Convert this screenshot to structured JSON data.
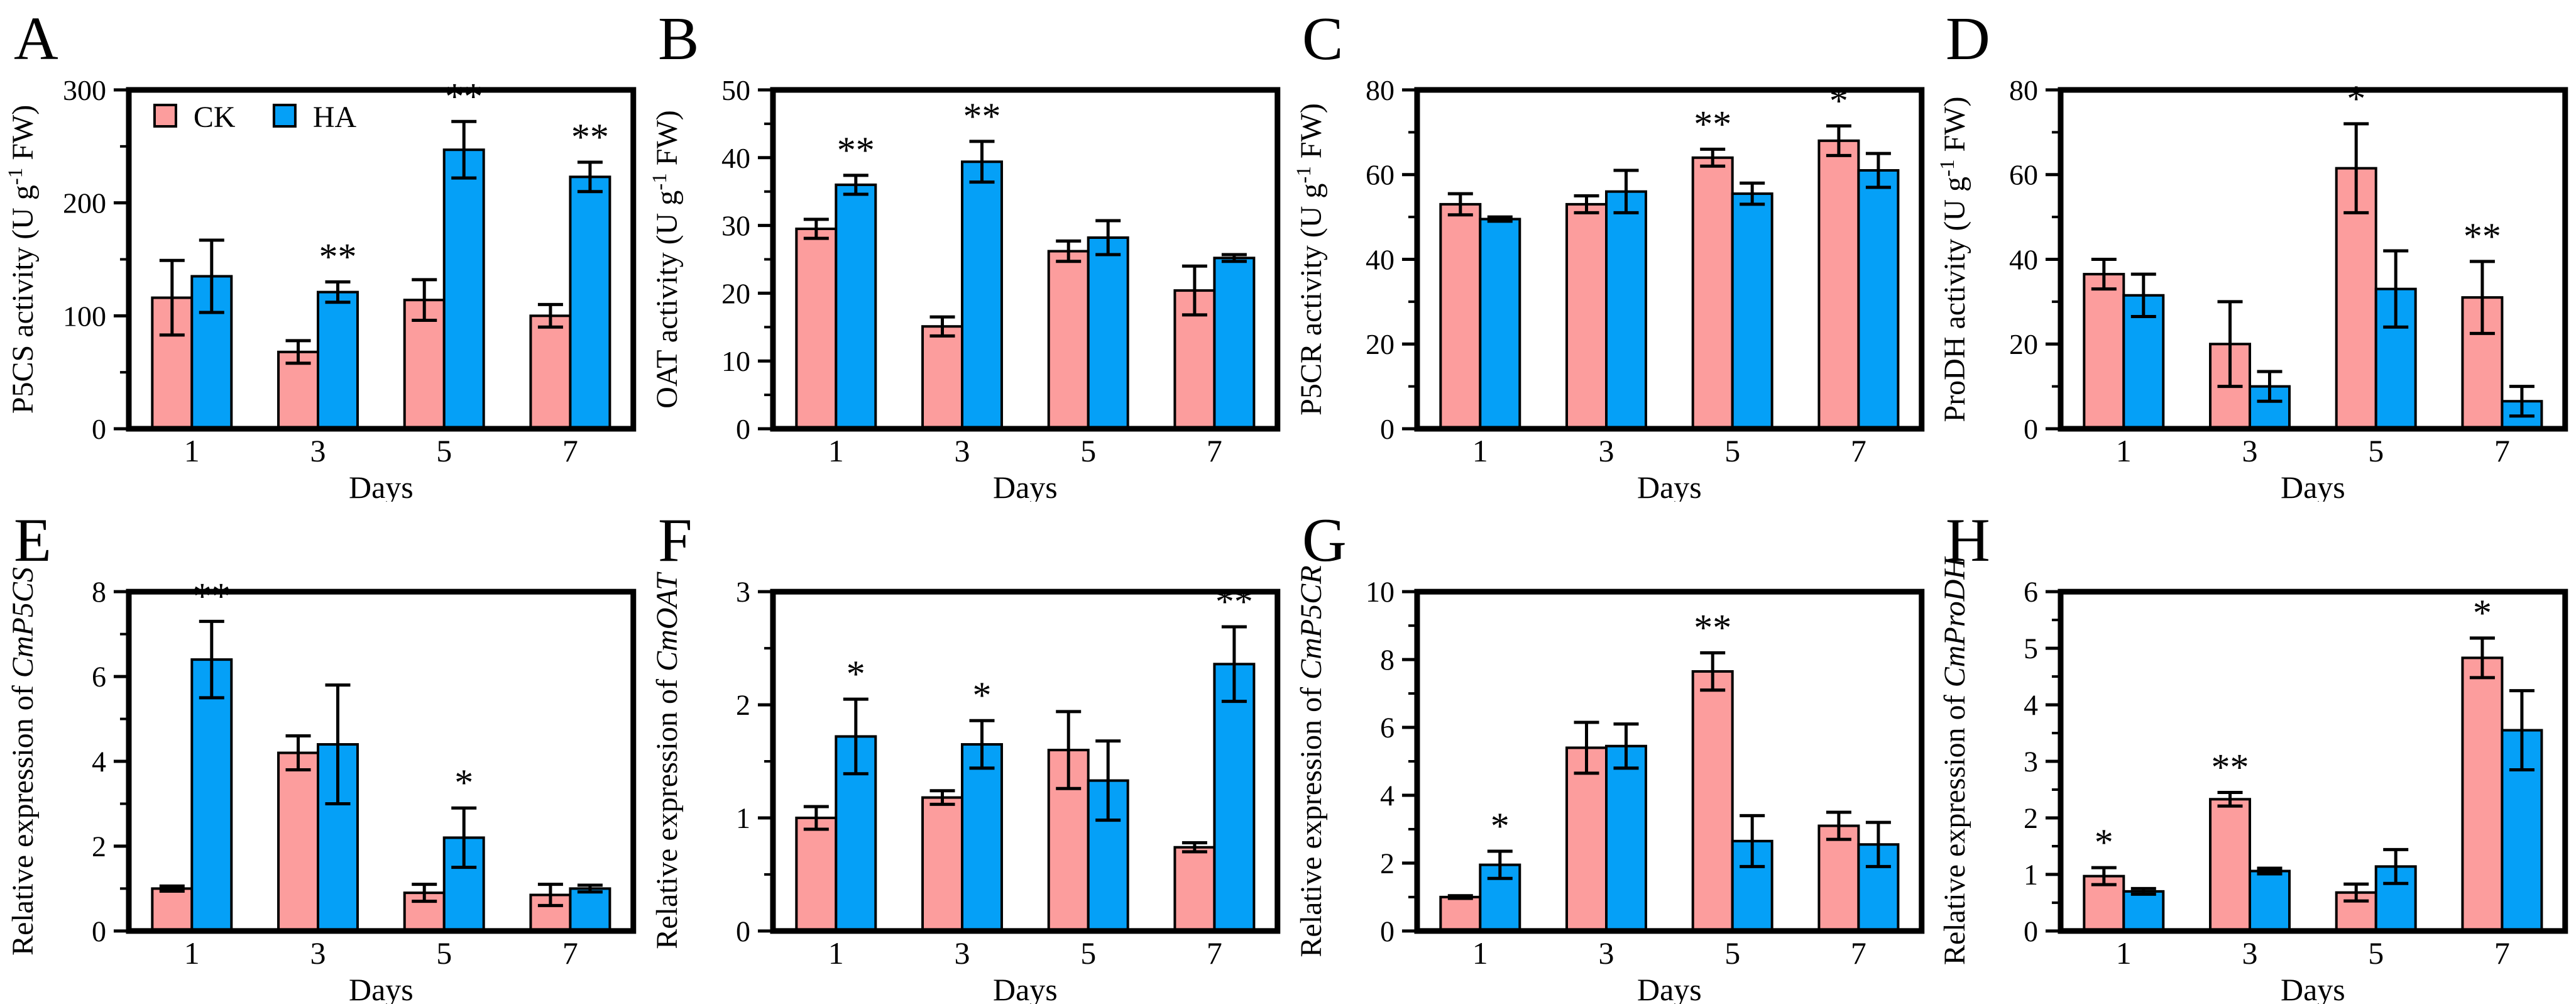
{
  "figure": {
    "layout": {
      "rows": 2,
      "cols": 4
    },
    "colors": {
      "ck_fill": "#FC9D9D",
      "ha_fill": "#05A0F7",
      "outline": "#000000",
      "background": "#FFFFFF"
    },
    "legend": {
      "panel": "A",
      "items": [
        {
          "key": "CK",
          "label": "CK"
        },
        {
          "key": "HA",
          "label": "HA"
        }
      ]
    },
    "xlabel": "Days",
    "categories": [
      "1",
      "3",
      "5",
      "7"
    ]
  },
  "chart_data": [
    {
      "panel": "A",
      "type": "bar",
      "ylabel": "P5CS activity (U g-1 FW)",
      "ylabel_segments": [
        {
          "t": "P5CS activity (U g"
        },
        {
          "t": "-1",
          "sup": true
        },
        {
          "t": " FW)"
        }
      ],
      "ylim": [
        0,
        300
      ],
      "yticks": [
        0,
        100,
        200,
        300
      ],
      "categories": [
        "1",
        "3",
        "5",
        "7"
      ],
      "xlabel": "Days",
      "series": [
        {
          "name": "CK",
          "values": [
            116,
            68,
            114,
            100
          ],
          "errors": [
            33,
            10,
            18,
            10
          ]
        },
        {
          "name": "HA",
          "values": [
            135,
            121,
            247,
            223
          ],
          "errors": [
            32,
            9,
            25,
            13
          ]
        }
      ],
      "significance": [
        {
          "category": "3",
          "series": "HA",
          "marker": "**"
        },
        {
          "category": "5",
          "series": "HA",
          "marker": "**"
        },
        {
          "category": "7",
          "series": "HA",
          "marker": "**"
        }
      ]
    },
    {
      "panel": "B",
      "type": "bar",
      "ylabel": "OAT activity (U g-1 FW)",
      "ylabel_segments": [
        {
          "t": "OAT activity (U g"
        },
        {
          "t": "-1",
          "sup": true
        },
        {
          "t": " FW)"
        }
      ],
      "ylim": [
        0,
        50
      ],
      "yticks": [
        0,
        10,
        20,
        30,
        40,
        50
      ],
      "categories": [
        "1",
        "3",
        "5",
        "7"
      ],
      "xlabel": "Days",
      "series": [
        {
          "name": "CK",
          "values": [
            29.5,
            15.1,
            26.2,
            20.4
          ],
          "errors": [
            1.4,
            1.4,
            1.5,
            3.6
          ]
        },
        {
          "name": "HA",
          "values": [
            36,
            39.4,
            28.2,
            25.2
          ],
          "errors": [
            1.4,
            3,
            2.5,
            0.5
          ]
        }
      ],
      "significance": [
        {
          "category": "1",
          "series": "HA",
          "marker": "**"
        },
        {
          "category": "3",
          "series": "HA",
          "marker": "**"
        }
      ]
    },
    {
      "panel": "C",
      "type": "bar",
      "ylabel": "P5CR activity (U g-1 FW)",
      "ylabel_segments": [
        {
          "t": "P5CR activity (U g"
        },
        {
          "t": "-1",
          "sup": true
        },
        {
          "t": " FW)"
        }
      ],
      "ylim": [
        0,
        80
      ],
      "yticks": [
        0,
        20,
        40,
        60,
        80
      ],
      "categories": [
        "1",
        "3",
        "5",
        "7"
      ],
      "xlabel": "Days",
      "series": [
        {
          "name": "CK",
          "values": [
            53,
            53,
            64,
            68
          ],
          "errors": [
            2.5,
            2,
            2,
            3.5
          ]
        },
        {
          "name": "HA",
          "values": [
            49.5,
            56,
            55.5,
            61
          ],
          "errors": [
            0.5,
            5,
            2.5,
            4
          ]
        }
      ],
      "significance": [
        {
          "category": "5",
          "series": "CK",
          "marker": "**"
        },
        {
          "category": "7",
          "series": "CK",
          "marker": "*"
        }
      ]
    },
    {
      "panel": "D",
      "type": "bar",
      "ylabel": "ProDH activity (U g-1 FW)",
      "ylabel_segments": [
        {
          "t": "ProDH activity (U g"
        },
        {
          "t": "-1",
          "sup": true
        },
        {
          "t": " FW)"
        }
      ],
      "ylim": [
        0,
        80
      ],
      "yticks": [
        0,
        20,
        40,
        60,
        80
      ],
      "categories": [
        "1",
        "3",
        "5",
        "7"
      ],
      "xlabel": "Days",
      "series": [
        {
          "name": "CK",
          "values": [
            36.5,
            20,
            61.5,
            31
          ],
          "errors": [
            3.5,
            10,
            10.5,
            8.5
          ]
        },
        {
          "name": "HA",
          "values": [
            31.5,
            10,
            33,
            6.5
          ],
          "errors": [
            5,
            3.5,
            9,
            3.5
          ]
        }
      ],
      "significance": [
        {
          "category": "5",
          "series": "CK",
          "marker": "*"
        },
        {
          "category": "7",
          "series": "CK",
          "marker": "**"
        }
      ]
    },
    {
      "panel": "E",
      "type": "bar",
      "ylabel": "Relative expression of CmP5CS",
      "ylabel_segments": [
        {
          "t": "Relative expression of "
        },
        {
          "t": "CmP5CS",
          "italic": true
        }
      ],
      "ylim": [
        0,
        8
      ],
      "yticks": [
        0,
        2,
        4,
        6,
        8
      ],
      "categories": [
        "1",
        "3",
        "5",
        "7"
      ],
      "xlabel": "Days",
      "series": [
        {
          "name": "CK",
          "values": [
            1.0,
            4.2,
            0.9,
            0.85
          ],
          "errors": [
            0.06,
            0.4,
            0.2,
            0.25
          ]
        },
        {
          "name": "HA",
          "values": [
            6.4,
            4.4,
            2.2,
            1.0
          ],
          "errors": [
            0.9,
            1.4,
            0.7,
            0.08
          ]
        }
      ],
      "significance": [
        {
          "category": "1",
          "series": "HA",
          "marker": "**"
        },
        {
          "category": "5",
          "series": "HA",
          "marker": "*"
        }
      ]
    },
    {
      "panel": "F",
      "type": "bar",
      "ylabel": "Relative expression of CmOAT",
      "ylabel_segments": [
        {
          "t": "Relative expression of "
        },
        {
          "t": "CmOAT",
          "italic": true
        }
      ],
      "ylim": [
        0,
        3
      ],
      "yticks": [
        0,
        1,
        2,
        3
      ],
      "categories": [
        "1",
        "3",
        "5",
        "7"
      ],
      "xlabel": "Days",
      "series": [
        {
          "name": "CK",
          "values": [
            1.0,
            1.18,
            1.6,
            0.74
          ],
          "errors": [
            0.1,
            0.06,
            0.34,
            0.04
          ]
        },
        {
          "name": "HA",
          "values": [
            1.72,
            1.65,
            1.33,
            2.36
          ],
          "errors": [
            0.33,
            0.21,
            0.35,
            0.33
          ]
        }
      ],
      "significance": [
        {
          "category": "1",
          "series": "HA",
          "marker": "*"
        },
        {
          "category": "3",
          "series": "HA",
          "marker": "*"
        },
        {
          "category": "7",
          "series": "HA",
          "marker": "**"
        }
      ]
    },
    {
      "panel": "G",
      "type": "bar",
      "ylabel": "Relative expression of CmP5CR",
      "ylabel_segments": [
        {
          "t": "Relative expression of "
        },
        {
          "t": "CmP5CR",
          "italic": true
        }
      ],
      "ylim": [
        0,
        10
      ],
      "yticks": [
        0,
        2,
        4,
        6,
        8,
        10
      ],
      "categories": [
        "1",
        "3",
        "5",
        "7"
      ],
      "xlabel": "Days",
      "series": [
        {
          "name": "CK",
          "values": [
            1.0,
            5.4,
            7.65,
            3.1
          ],
          "errors": [
            0.04,
            0.75,
            0.55,
            0.4
          ]
        },
        {
          "name": "HA",
          "values": [
            1.95,
            5.45,
            2.65,
            2.55
          ],
          "errors": [
            0.4,
            0.65,
            0.75,
            0.65
          ]
        }
      ],
      "significance": [
        {
          "category": "1",
          "series": "HA",
          "marker": "*"
        },
        {
          "category": "5",
          "series": "CK",
          "marker": "**"
        }
      ]
    },
    {
      "panel": "H",
      "type": "bar",
      "ylabel": "Relative expression of CmProDH",
      "ylabel_segments": [
        {
          "t": "Relative expression of "
        },
        {
          "t": "CmProDH",
          "italic": true
        }
      ],
      "ylim": [
        0,
        6
      ],
      "yticks": [
        0,
        1,
        2,
        3,
        4,
        5,
        6
      ],
      "categories": [
        "1",
        "3",
        "5",
        "7"
      ],
      "xlabel": "Days",
      "series": [
        {
          "name": "CK",
          "values": [
            0.97,
            2.33,
            0.68,
            4.83
          ],
          "errors": [
            0.15,
            0.12,
            0.15,
            0.35
          ]
        },
        {
          "name": "HA",
          "values": [
            0.7,
            1.06,
            1.14,
            3.55
          ],
          "errors": [
            0.05,
            0.05,
            0.3,
            0.7
          ]
        }
      ],
      "significance": [
        {
          "category": "1",
          "series": "CK",
          "marker": "*"
        },
        {
          "category": "3",
          "series": "CK",
          "marker": "**"
        },
        {
          "category": "7",
          "series": "CK",
          "marker": "*"
        }
      ]
    }
  ]
}
